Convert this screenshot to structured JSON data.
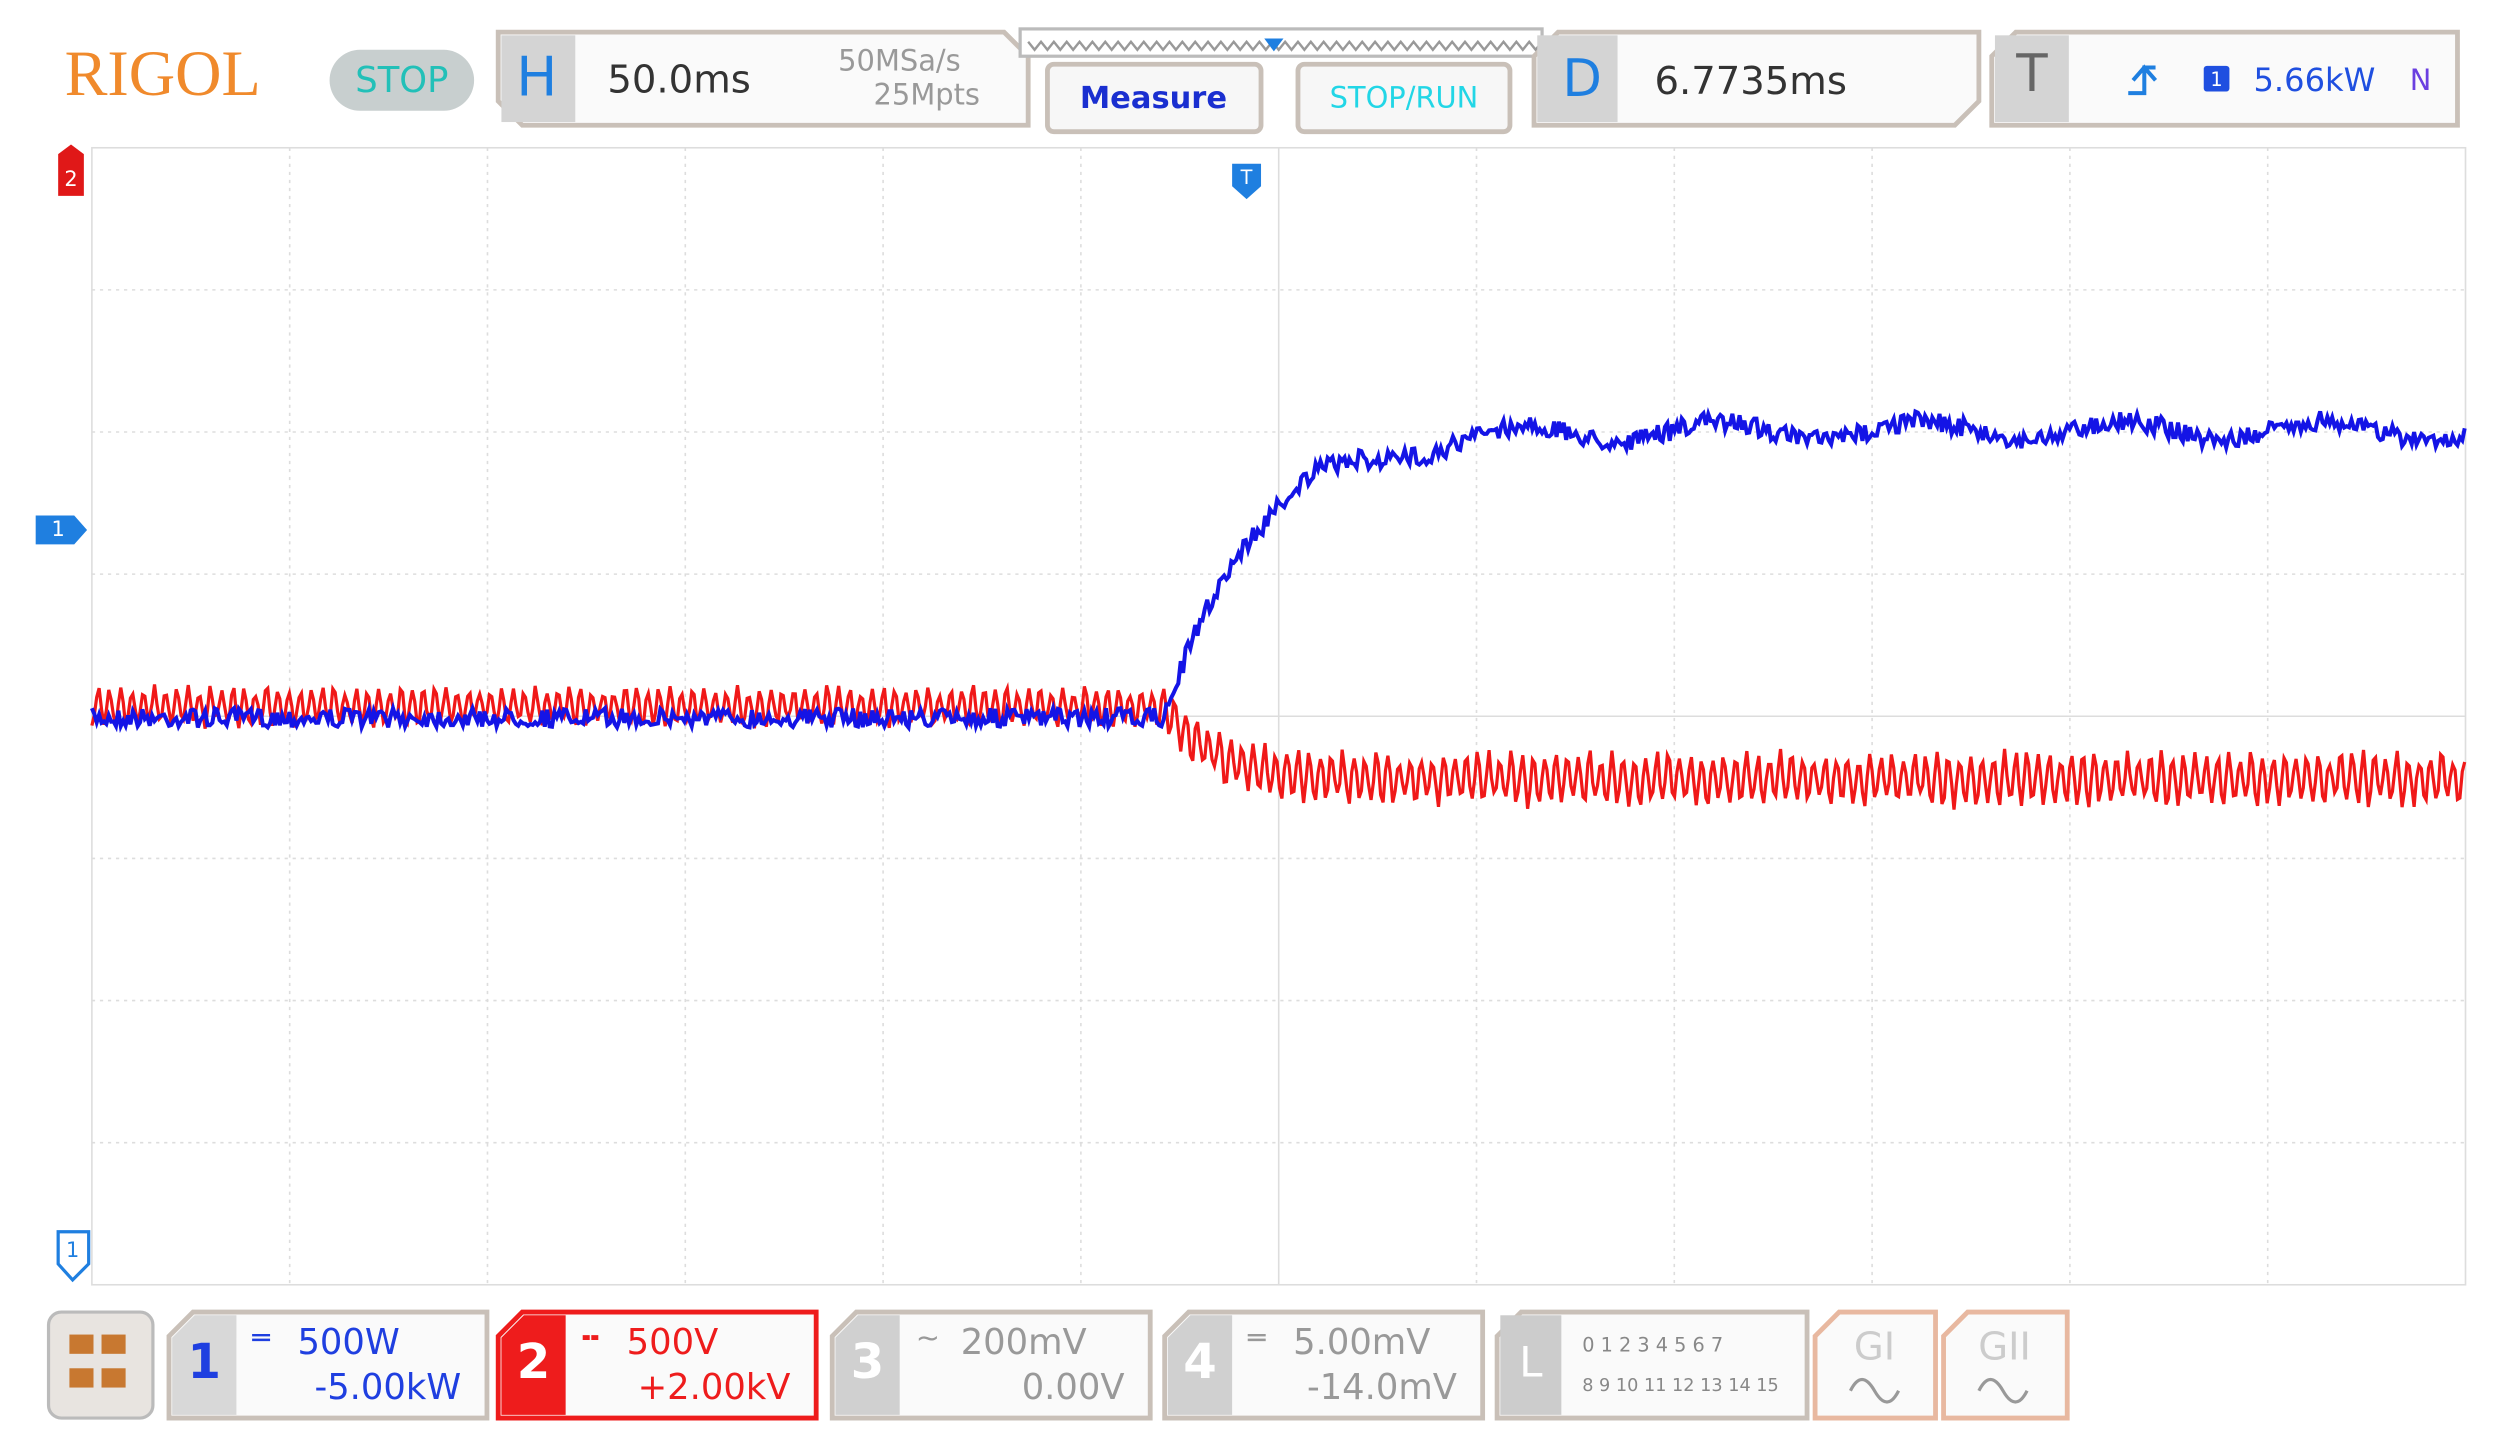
{
  "header": {
    "brand": "RIGOL",
    "status": "STOP",
    "horizontal": {
      "label": "H",
      "timebase": "50.0ms",
      "sample_rate": "50MSa/s",
      "memory": "25Mpts"
    },
    "buttons": [
      "Measure",
      "STOP/RUN"
    ],
    "delay": {
      "label": "D",
      "value": "6.7735ms"
    },
    "trigger": {
      "label": "T",
      "source": "1",
      "level": "5.66kW",
      "mode": "N"
    }
  },
  "markers": {
    "channel2": "2",
    "channel1": "1",
    "trigger": "T",
    "channel1_ground": "1"
  },
  "channels": [
    {
      "number": "1",
      "scale": "500W",
      "offset": "-5.00kW"
    },
    {
      "number": "2",
      "scale": "500V",
      "offset": "+2.00kV"
    },
    {
      "number": "3",
      "scale": "200mV",
      "offset": "0.00V"
    },
    {
      "number": "4",
      "scale": "5.00mV",
      "offset": "-14.0mV"
    }
  ],
  "logic": {
    "label": "L",
    "row1": "0 1 2 3  4 5 6 7",
    "row2": "8 9 10 11 12 13 14 15"
  },
  "generators": [
    "GI",
    "GII"
  ]
}
